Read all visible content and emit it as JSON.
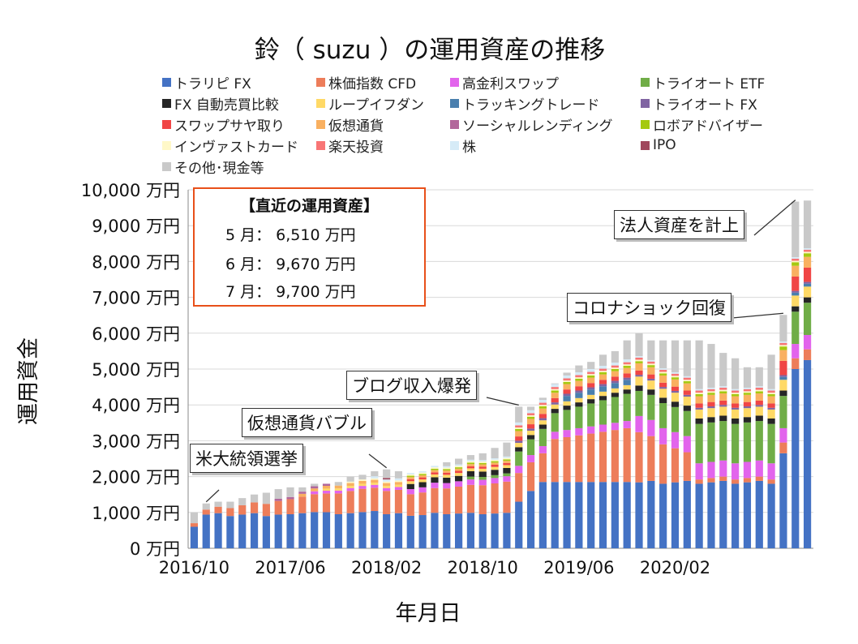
{
  "chart_data": {
    "type": "bar",
    "stacked": true,
    "title": "鈴（ suzu ）の運用資産の推移",
    "xlabel": "年月日",
    "ylabel": "運用資金",
    "ylim": [
      0,
      10000
    ],
    "y_ticks": [
      "0 万円",
      "1,000 万円",
      "2,000 万円",
      "3,000 万円",
      "4,000 万円",
      "5,000 万円",
      "6,000 万円",
      "7,000 万円",
      "8,000 万円",
      "9,000 万円",
      "10,000 万円"
    ],
    "x_ticks": [
      "2016/10",
      "2017/06",
      "2018/02",
      "2018/10",
      "2019/06",
      "2020/02"
    ],
    "grid": true,
    "legend_placement": "top",
    "series": [
      {
        "name": "トラリピ FX",
        "color": "#4472c4"
      },
      {
        "name": "株価指数 CFD",
        "color": "#ed7d5a"
      },
      {
        "name": "高金利スワップ",
        "color": "#e264ec"
      },
      {
        "name": "トライオート ETF",
        "color": "#70ad47"
      },
      {
        "name": "FX 自動売買比較",
        "color": "#262626"
      },
      {
        "name": "ループイフダン",
        "color": "#ffd966"
      },
      {
        "name": "トラッキングトレード",
        "color": "#4a7fae"
      },
      {
        "name": "トライオート FX",
        "color": "#8064a2"
      },
      {
        "name": "スワップサヤ取り",
        "color": "#f04545"
      },
      {
        "name": "仮想通貨",
        "color": "#f9b060"
      },
      {
        "name": "ソーシャルレンディング",
        "color": "#b2679b"
      },
      {
        "name": "ロボアドバイザー",
        "color": "#a5c90f"
      },
      {
        "name": "インヴァストカード",
        "color": "#fff8c8"
      },
      {
        "name": "楽天投資",
        "color": "#f87575"
      },
      {
        "name": "株",
        "color": "#d6ebf7"
      },
      {
        "name": "IPO",
        "color": "#a0475c"
      },
      {
        "name": "その他･現金等",
        "color": "#c9c9c9"
      }
    ],
    "totals": [
      1000,
      1250,
      1300,
      1300,
      1400,
      1500,
      1550,
      1650,
      1700,
      1700,
      1800,
      1800,
      1850,
      2000,
      2050,
      2150,
      2200,
      2150,
      2100,
      2150,
      2300,
      2400,
      2500,
      2600,
      2650,
      2800,
      2950,
      3950,
      3950,
      4200,
      4600,
      4900,
      5100,
      5200,
      5400,
      5500,
      5800,
      6000,
      5800,
      5800,
      5800,
      5800,
      5800,
      5700,
      5450,
      5300,
      5050,
      5050,
      5400,
      6510,
      9670,
      9700
    ],
    "annotations": [
      "米大統領選挙",
      "仮想通貨バブル",
      "ブログ収入爆発",
      "コロナショック回復",
      "法人資産を計上"
    ]
  },
  "info_box": {
    "title": "【直近の運用資産】",
    "lines": [
      "5 月： 6,510 万円",
      "6 月： 9,670 万円",
      "7 月： 9,700 万円"
    ]
  }
}
